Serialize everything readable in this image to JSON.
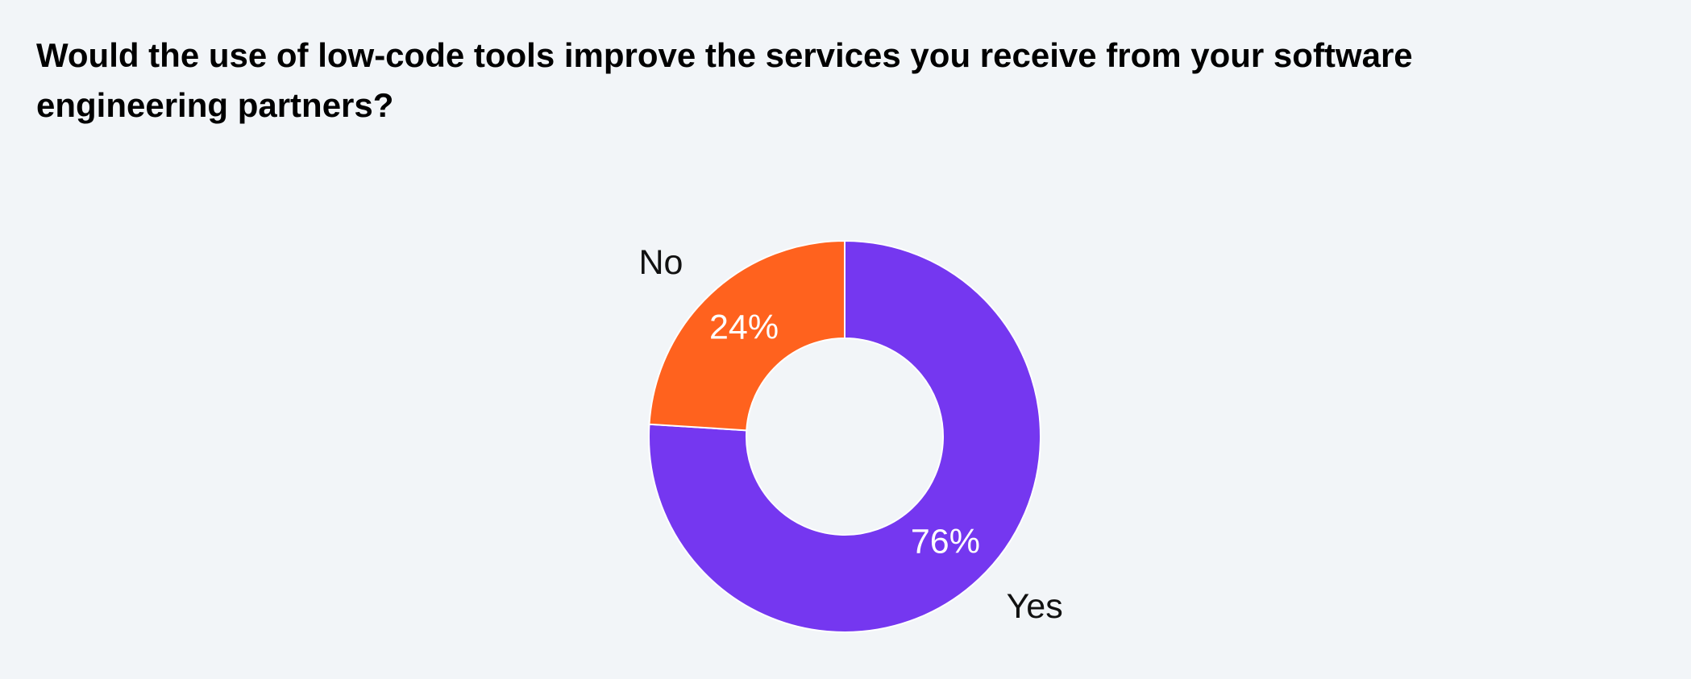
{
  "chart_data": {
    "type": "pie",
    "title": "Would the use of low-code tools improve the services you receive from your software engineering partners?",
    "categories": [
      "Yes",
      "No"
    ],
    "values": [
      76,
      24
    ],
    "value_labels": [
      "76%",
      "24%"
    ],
    "colors": [
      "#7537f0",
      "#ff621e"
    ],
    "donut": true
  }
}
